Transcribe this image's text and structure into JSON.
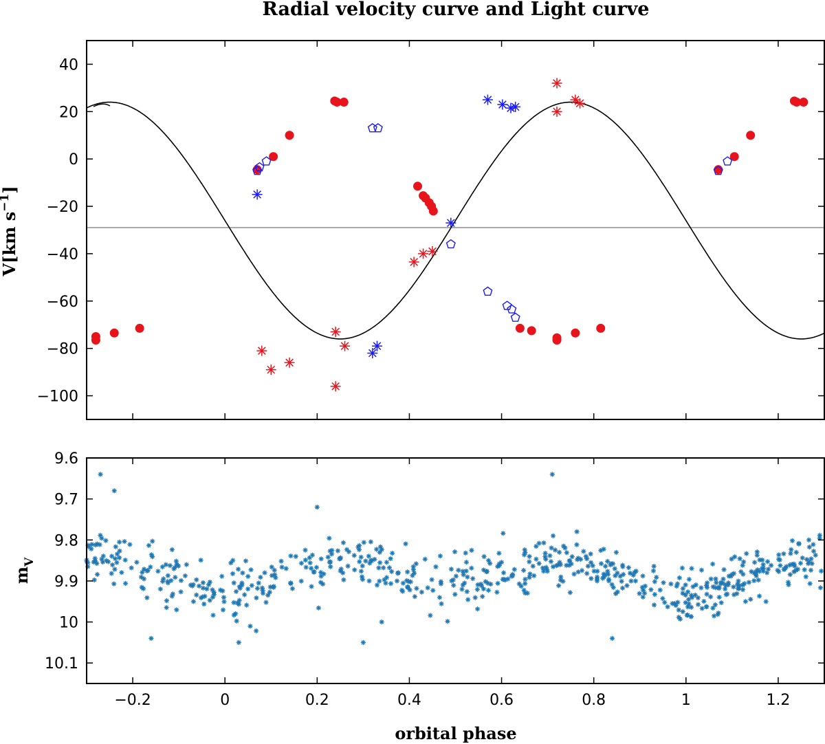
{
  "chart_data": [
    {
      "type": "scatter",
      "title": "Radial velocity curve and Light curve",
      "ylabel_main": "V[km s",
      "ylabel_exp": "−1",
      "ylabel_close": "]",
      "xlim": [
        -0.3,
        1.3
      ],
      "ylim": [
        -110,
        50
      ],
      "yticks": [
        40,
        20,
        0,
        -20,
        -40,
        -60,
        -80,
        -100
      ],
      "ytick_labels": [
        "40",
        "20",
        "0",
        "−20",
        "−40",
        "−60",
        "−80",
        "−100"
      ],
      "gamma_velocity": -29,
      "model_curve": {
        "K": 50,
        "gamma": -26,
        "period_phase": 1.0,
        "zero_phase": 0.0
      },
      "colors": {
        "primary": "#e8141c",
        "secondary_blue": "#1a1aff",
        "curve": "#000000",
        "gamma": "#aaaaaa"
      },
      "series": [
        {
          "marker": "filled-circle",
          "color": "#e8141c",
          "points": [
            [
              -0.28,
              -75
            ],
            [
              -0.28,
              -76.5
            ],
            [
              -0.24,
              -73.5
            ],
            [
              -0.185,
              -71.5
            ],
            [
              0.07,
              -4.5
            ],
            [
              0.105,
              1
            ],
            [
              0.14,
              10
            ],
            [
              0.238,
              24.5
            ],
            [
              0.243,
              24
            ],
            [
              0.258,
              24
            ],
            [
              0.418,
              -11.5
            ],
            [
              0.43,
              -15.5
            ],
            [
              0.435,
              -16.5
            ],
            [
              0.443,
              -18.5
            ],
            [
              0.448,
              -20
            ],
            [
              0.452,
              -22
            ],
            [
              0.64,
              -71.5
            ],
            [
              0.665,
              -72.5
            ],
            [
              0.72,
              -75.5
            ],
            [
              0.72,
              -76.5
            ],
            [
              0.76,
              -73.5
            ],
            [
              0.815,
              -71.5
            ],
            [
              1.07,
              -4.5
            ],
            [
              1.105,
              1
            ],
            [
              1.14,
              10
            ],
            [
              1.235,
              24.5
            ],
            [
              1.24,
              24
            ],
            [
              1.255,
              24
            ]
          ]
        },
        {
          "marker": "open-pentagon",
          "color": "#1a1aff",
          "points": [
            [
              0.07,
              -5
            ],
            [
              0.075,
              -3.5
            ],
            [
              0.09,
              -1
            ],
            [
              0.32,
              13
            ],
            [
              0.332,
              13
            ],
            [
              0.49,
              -36
            ],
            [
              0.57,
              -56
            ],
            [
              0.612,
              -62
            ],
            [
              0.622,
              -63.5
            ],
            [
              0.63,
              -67
            ],
            [
              1.07,
              -5
            ],
            [
              1.09,
              -1
            ]
          ]
        },
        {
          "marker": "star",
          "color": "#1a1aff",
          "points": [
            [
              0.07,
              -15
            ],
            [
              0.32,
              -82
            ],
            [
              0.33,
              -79
            ],
            [
              0.49,
              -27
            ],
            [
              0.57,
              25
            ],
            [
              0.602,
              23
            ],
            [
              0.62,
              21.5
            ],
            [
              0.63,
              22
            ]
          ]
        },
        {
          "marker": "star",
          "color": "#e8141c",
          "points": [
            [
              0.08,
              -81
            ],
            [
              0.1,
              -89
            ],
            [
              0.14,
              -86
            ],
            [
              0.24,
              -73
            ],
            [
              0.24,
              -96
            ],
            [
              0.26,
              -79
            ],
            [
              0.41,
              -43.5
            ],
            [
              0.43,
              -40
            ],
            [
              0.45,
              -39
            ],
            [
              0.72,
              32
            ],
            [
              0.72,
              20
            ],
            [
              0.76,
              25
            ],
            [
              0.77,
              23.5
            ]
          ]
        }
      ]
    },
    {
      "type": "scatter",
      "title": "",
      "xlabel": "orbital phase",
      "ylabel_main": "m",
      "ylabel_sub": "V",
      "xlim": [
        -0.3,
        1.3
      ],
      "ylim": [
        10.15,
        9.6
      ],
      "xticks": [
        -0.2,
        0,
        0.2,
        0.4,
        0.6,
        0.8,
        1,
        1.2
      ],
      "xtick_labels": [
        "−0.2",
        "0",
        "0.2",
        "0.4",
        "0.6",
        "0.8",
        "1",
        "1.2"
      ],
      "yticks": [
        9.6,
        9.7,
        9.8,
        9.9,
        10,
        10.1
      ],
      "ytick_labels": [
        "9.6",
        "9.7",
        "9.8",
        "9.9",
        "10",
        "10.1"
      ],
      "color": "#1f77b4",
      "marker": "star",
      "light_model": {
        "mean": 9.885,
        "amplitude": 0.07,
        "n_points": 640,
        "scatter_sd": 0.032,
        "seed": 7
      },
      "outliers": [
        [
          -0.27,
          9.64
        ],
        [
          -0.24,
          9.68
        ],
        [
          0.71,
          9.64
        ],
        [
          0.34,
          10.0
        ],
        [
          0.33,
          9.91
        ],
        [
          0.3,
          10.05
        ],
        [
          0.03,
          10.05
        ],
        [
          -0.16,
          10.04
        ],
        [
          0.84,
          10.04
        ],
        [
          0.2,
          9.72
        ]
      ]
    }
  ]
}
